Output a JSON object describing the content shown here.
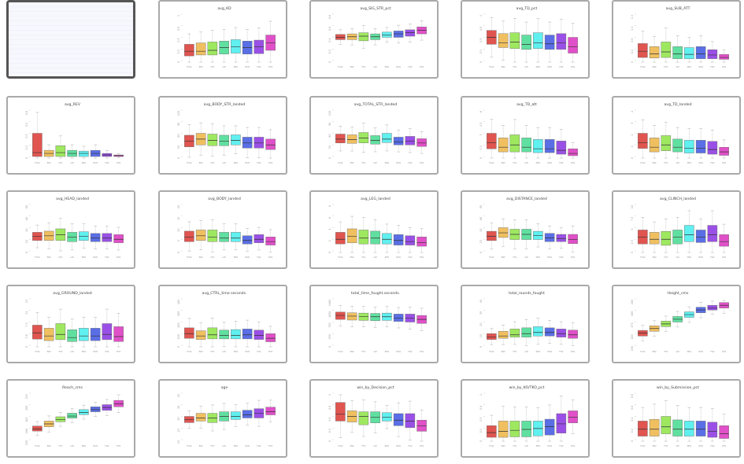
{
  "gallery": {
    "selected_index": 0,
    "categories": [
      "FLW",
      "BW",
      "FW",
      "LW",
      "MW",
      "WW",
      "HW",
      "HW"
    ],
    "colors": [
      "#e05550",
      "#f0c060",
      "#9ee860",
      "#60e0a0",
      "#60f0f0",
      "#5a6ee6",
      "#9a50e6",
      "#e050c8"
    ],
    "plots": [
      {
        "title": "",
        "selected": true,
        "medians": [],
        "lo": [],
        "hi": []
      },
      {
        "title": "avg_KD",
        "medians": [
          0.2,
          0.2,
          0.22,
          0.28,
          0.3,
          0.28,
          0.3,
          0.38
        ],
        "lo": [
          0.1,
          0.12,
          0.12,
          0.14,
          0.16,
          0.14,
          0.15,
          0.22
        ],
        "hi": [
          0.35,
          0.38,
          0.4,
          0.42,
          0.45,
          0.42,
          0.44,
          0.55
        ],
        "ylim": [
          0,
          1
        ]
      },
      {
        "title": "avg_SIG_STR_pct",
        "medians": [
          0.4,
          0.41,
          0.42,
          0.41,
          0.44,
          0.46,
          0.48,
          0.52
        ],
        "lo": [
          0.36,
          0.36,
          0.34,
          0.36,
          0.4,
          0.4,
          0.42,
          0.46
        ],
        "hi": [
          0.45,
          0.46,
          0.48,
          0.46,
          0.49,
          0.51,
          0.53,
          0.58
        ],
        "ylim": [
          0,
          0.8
        ]
      },
      {
        "title": "avg_TD_pct",
        "medians": [
          0.5,
          0.38,
          0.4,
          0.35,
          0.38,
          0.36,
          0.38,
          0.3
        ],
        "lo": [
          0.35,
          0.28,
          0.26,
          0.24,
          0.26,
          0.24,
          0.24,
          0.16
        ],
        "hi": [
          0.65,
          0.58,
          0.6,
          0.55,
          0.6,
          0.55,
          0.58,
          0.5
        ],
        "ylim": [
          0,
          1
        ]
      },
      {
        "title": "avg_SUB_ATT",
        "medians": [
          0.3,
          0.22,
          0.28,
          0.22,
          0.2,
          0.22,
          0.18,
          0.1
        ],
        "lo": [
          0.1,
          0.08,
          0.1,
          0.06,
          0.06,
          0.06,
          0.06,
          0.04
        ],
        "hi": [
          0.55,
          0.45,
          0.6,
          0.45,
          0.42,
          0.45,
          0.35,
          0.2
        ],
        "ylim": [
          0,
          1.5
        ]
      },
      {
        "title": "avg_REV",
        "medians": [
          0.05,
          0.04,
          0.05,
          0.04,
          0.04,
          0.04,
          0.02,
          0.01
        ],
        "lo": [
          0.0,
          0.0,
          0.0,
          0.0,
          0.0,
          0.0,
          0.0,
          0.0
        ],
        "hi": [
          0.3,
          0.08,
          0.14,
          0.08,
          0.07,
          0.08,
          0.04,
          0.02
        ],
        "ylim": [
          0,
          0.6
        ]
      },
      {
        "title": "avg_BODY_STR_landed",
        "medians": [
          40,
          45,
          42,
          40,
          42,
          35,
          35,
          30
        ],
        "lo": [
          25,
          30,
          28,
          28,
          30,
          22,
          22,
          18
        ],
        "hi": [
          55,
          60,
          58,
          55,
          56,
          50,
          50,
          45
        ],
        "ylim": [
          0,
          120
        ]
      },
      {
        "title": "avg_TOTAL_STR_landed",
        "medians": [
          45,
          44,
          48,
          42,
          45,
          38,
          40,
          35
        ],
        "lo": [
          35,
          34,
          35,
          32,
          36,
          30,
          30,
          26
        ],
        "hi": [
          58,
          56,
          62,
          54,
          60,
          50,
          52,
          46
        ],
        "ylim": [
          0,
          120
        ]
      },
      {
        "title": "avg_TD_att",
        "medians": [
          1.8,
          1.2,
          1.5,
          1.2,
          1.0,
          1.0,
          0.8,
          0.4
        ],
        "lo": [
          1.0,
          0.6,
          0.6,
          0.6,
          0.5,
          0.5,
          0.3,
          0.1
        ],
        "hi": [
          3.0,
          2.4,
          2.8,
          2.4,
          2.2,
          2.2,
          2.0,
          1.0
        ],
        "ylim": [
          0,
          6
        ]
      },
      {
        "title": "avg_TD_landed",
        "medians": [
          1.2,
          0.8,
          1.0,
          0.8,
          0.7,
          0.7,
          0.6,
          0.4
        ],
        "lo": [
          0.7,
          0.4,
          0.5,
          0.4,
          0.3,
          0.3,
          0.2,
          0.1
        ],
        "hi": [
          2.0,
          1.6,
          1.8,
          1.5,
          1.4,
          1.4,
          1.3,
          0.8
        ],
        "ylim": [
          0,
          4
        ]
      },
      {
        "title": "avg_HEAD_landed",
        "medians": [
          25,
          26,
          28,
          24,
          25,
          22,
          22,
          20
        ],
        "lo": [
          18,
          18,
          18,
          16,
          18,
          16,
          16,
          14
        ],
        "hi": [
          32,
          34,
          38,
          32,
          33,
          30,
          30,
          28
        ],
        "ylim": [
          0,
          80
        ]
      },
      {
        "title": "avg_BODY_landed",
        "medians": [
          6.0,
          6.5,
          6.0,
          5.5,
          5.5,
          4.5,
          5.0,
          4.0
        ],
        "lo": [
          4,
          4.5,
          4,
          4,
          4,
          3,
          3.5,
          2.5
        ],
        "hi": [
          8.5,
          9,
          9,
          8,
          8,
          6.5,
          7,
          6
        ],
        "ylim": [
          0,
          20
        ]
      },
      {
        "title": "avg_LEG_landed",
        "medians": [
          2.0,
          2.5,
          2.2,
          2.2,
          2.0,
          1.8,
          1.6,
          1.4
        ],
        "lo": [
          1.2,
          1.4,
          1.2,
          1.2,
          1.2,
          1.0,
          1.0,
          0.8
        ],
        "hi": [
          3.2,
          3.8,
          3.6,
          3.4,
          3.0,
          2.8,
          2.6,
          2.4
        ],
        "ylim": [
          0,
          8
        ]
      },
      {
        "title": "avg_DISTANCE_landed",
        "medians": [
          28,
          35,
          32,
          32,
          30,
          25,
          24,
          22
        ],
        "lo": [
          20,
          26,
          22,
          22,
          22,
          18,
          18,
          14
        ],
        "hi": [
          38,
          45,
          42,
          42,
          38,
          34,
          32,
          32
        ],
        "ylim": [
          0,
          90
        ]
      },
      {
        "title": "avg_CLINCH_landed",
        "medians": [
          3.0,
          2.5,
          2.5,
          3.0,
          3.5,
          3.0,
          3.5,
          2.0
        ],
        "lo": [
          1.5,
          1.5,
          1.2,
          1.5,
          2.0,
          1.8,
          2.0,
          1.0
        ],
        "hi": [
          4.5,
          4.0,
          4.2,
          4.5,
          5.5,
          4.5,
          5.5,
          3.5
        ],
        "ylim": [
          0,
          10
        ]
      },
      {
        "title": "avg_GROUND_landed",
        "medians": [
          4.0,
          3.0,
          3.5,
          2.5,
          3.0,
          3.0,
          3.5,
          2.8
        ],
        "lo": [
          2.0,
          1.5,
          1.8,
          1.2,
          1.5,
          1.5,
          1.8,
          1.2
        ],
        "hi": [
          6.5,
          5.5,
          7.0,
          5.0,
          5.5,
          5.5,
          7.0,
          6.0
        ],
        "ylim": [
          0,
          15
        ]
      },
      {
        "title": "avg_CTRL_time.seconds.",
        "medians": [
          100,
          80,
          90,
          85,
          85,
          90,
          85,
          60
        ],
        "lo": [
          60,
          50,
          55,
          55,
          55,
          55,
          50,
          30
        ],
        "hi": [
          150,
          125,
          150,
          130,
          135,
          140,
          130,
          100
        ],
        "ylim": [
          0,
          400
        ]
      },
      {
        "title": "total_time_fought.seconds.",
        "medians": [
          900,
          880,
          870,
          860,
          860,
          820,
          820,
          780
        ],
        "lo": [
          780,
          760,
          750,
          740,
          750,
          720,
          700,
          660
        ],
        "hi": [
          1000,
          980,
          970,
          960,
          970,
          940,
          940,
          900
        ],
        "ylim": [
          0,
          1400
        ]
      },
      {
        "title": "total_rounds_fought",
        "medians": [
          7,
          8,
          9,
          10,
          11,
          11,
          10,
          9
        ],
        "lo": [
          5,
          6,
          7,
          7,
          8,
          8,
          7,
          6
        ],
        "hi": [
          10,
          12,
          14,
          15,
          16,
          15,
          14,
          13
        ],
        "ylim": [
          0,
          40
        ]
      },
      {
        "title": "Height_cms",
        "medians": [
          163,
          168,
          173,
          178,
          183,
          188,
          190,
          193
        ],
        "lo": [
          160,
          165,
          170,
          175,
          180,
          185,
          188,
          190
        ],
        "hi": [
          166,
          171,
          176,
          181,
          186,
          191,
          193,
          196
        ],
        "ylim": [
          150,
          200
        ]
      },
      {
        "title": "Reach_cms",
        "medians": [
          165,
          172,
          178,
          183,
          188,
          192,
          195,
          200
        ],
        "lo": [
          162,
          168,
          175,
          180,
          185,
          189,
          191,
          196
        ],
        "hi": [
          169,
          176,
          182,
          187,
          192,
          196,
          199,
          205
        ],
        "ylim": [
          150,
          215
        ]
      },
      {
        "title": "age",
        "medians": [
          28,
          29,
          29,
          30,
          30,
          31,
          32,
          33
        ],
        "lo": [
          26,
          27,
          26,
          27,
          28,
          29,
          29,
          31
        ],
        "hi": [
          30,
          32,
          32,
          33,
          33,
          34,
          35,
          36
        ],
        "ylim": [
          15,
          45
        ]
      },
      {
        "title": "win_by_Decision_pct",
        "medians": [
          0.55,
          0.5,
          0.5,
          0.48,
          0.48,
          0.42,
          0.4,
          0.3
        ],
        "lo": [
          0.4,
          0.38,
          0.32,
          0.36,
          0.4,
          0.3,
          0.26,
          0.18
        ],
        "hi": [
          0.8,
          0.62,
          0.6,
          0.6,
          0.58,
          0.56,
          0.56,
          0.42
        ],
        "ylim": [
          0,
          1
        ]
      },
      {
        "title": "win_by_KO/TKO_pct",
        "medians": [
          0.15,
          0.18,
          0.2,
          0.22,
          0.24,
          0.28,
          0.34,
          0.48
        ],
        "lo": [
          0.05,
          0.05,
          0.06,
          0.06,
          0.08,
          0.1,
          0.14,
          0.36
        ],
        "hi": [
          0.3,
          0.4,
          0.4,
          0.4,
          0.4,
          0.44,
          0.56,
          0.62
        ],
        "ylim": [
          0,
          1
        ]
      },
      {
        "title": "win_by_Submission_pct",
        "medians": [
          0.18,
          0.18,
          0.22,
          0.18,
          0.18,
          0.18,
          0.14,
          0.1
        ],
        "lo": [
          0.06,
          0.06,
          0.1,
          0.06,
          0.06,
          0.06,
          0.04,
          0.02
        ],
        "hi": [
          0.32,
          0.35,
          0.4,
          0.34,
          0.32,
          0.32,
          0.3,
          0.24
        ],
        "ylim": [
          0,
          0.8
        ]
      }
    ]
  }
}
